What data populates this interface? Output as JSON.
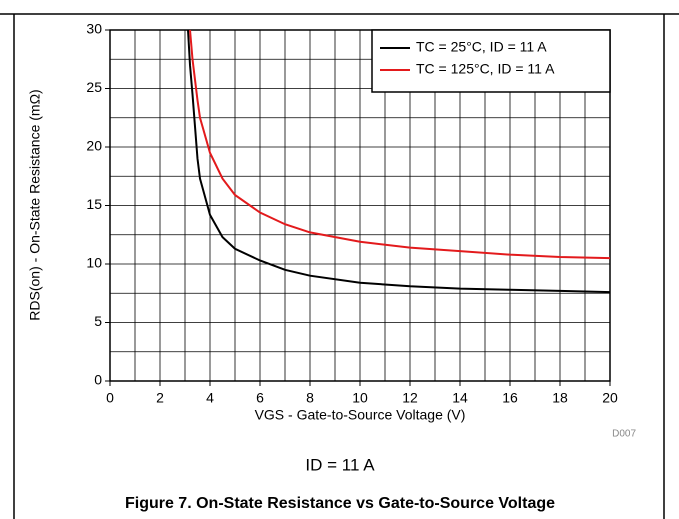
{
  "chart_data": {
    "type": "line",
    "x_label": "VGS - Gate-to-Source Voltage (V)",
    "y_label": "RDS(on) - On-State Resistance (mΩ)",
    "code": "D007",
    "condition": "ID = 11 A",
    "caption": "Figure 7. On-State Resistance vs Gate-to-Source Voltage",
    "x": [
      3.12,
      3.2,
      3.3,
      3.5,
      3.6,
      4,
      4.5,
      5,
      6,
      7,
      8,
      10,
      12,
      14,
      16,
      18,
      20
    ],
    "series": [
      {
        "name": "TC = 25°C, ID = 11 A",
        "color": "#000000",
        "values": [
          30,
          27,
          24.5,
          19,
          17.3,
          14.2,
          12.3,
          11.3,
          10.3,
          9.5,
          9,
          8.4,
          8.1,
          7.9,
          7.8,
          7.7,
          7.6
        ]
      },
      {
        "name": "TC = 125°C, ID = 11 A",
        "color": "#e31a1c",
        "values": [
          null,
          30,
          27.5,
          24,
          22.5,
          19.5,
          17.3,
          15.9,
          14.4,
          13.4,
          12.7,
          11.9,
          11.4,
          11.1,
          10.8,
          10.6,
          10.5
        ]
      }
    ],
    "xlim": [
      0,
      20
    ],
    "ylim": [
      0,
      30
    ],
    "xticks": [
      0,
      2,
      4,
      6,
      8,
      10,
      12,
      14,
      16,
      18,
      20
    ],
    "yticks": [
      0,
      5,
      10,
      15,
      20,
      25,
      30
    ],
    "minor_xticks": [
      1,
      3,
      5,
      7,
      9,
      11,
      13,
      15,
      17,
      19
    ],
    "minor_yticks": [
      2.5,
      7.5,
      12.5,
      17.5,
      22.5,
      27.5
    ],
    "grid": true,
    "legend": "top-right"
  }
}
